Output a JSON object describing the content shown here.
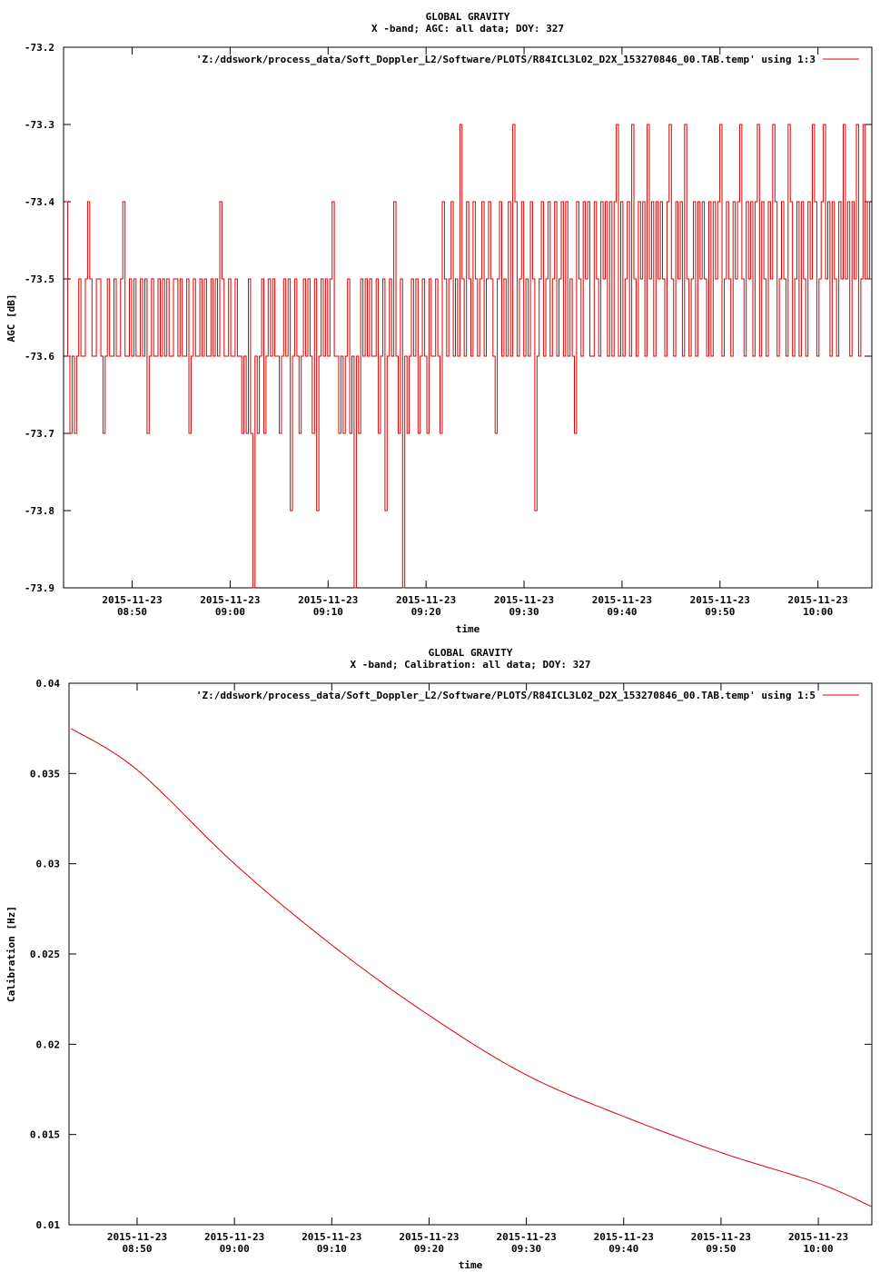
{
  "colors": {
    "series": "#dd0000",
    "axis": "#000000",
    "background": "#ffffff"
  },
  "chart_data": [
    {
      "type": "line",
      "title": "GLOBAL GRAVITY",
      "subtitle": "X -band; AGC: all data; DOY: 327",
      "xlabel": "time",
      "ylabel": "AGC [dB]",
      "ylim": [
        -73.9,
        -73.2
      ],
      "yticks": [
        -73.2,
        -73.3,
        -73.4,
        -73.5,
        -73.6,
        -73.7,
        -73.8,
        -73.9
      ],
      "ytick_labels": [
        "-73.2",
        "-73.3",
        "-73.4",
        "-73.5",
        "-73.6",
        "-73.7",
        "-73.8",
        "-73.9"
      ],
      "xlim_minutes_of_day": [
        523,
        605.5
      ],
      "xticks_minutes_of_day": [
        530,
        540,
        550,
        560,
        570,
        580,
        590,
        600
      ],
      "xtick_dates": [
        "2015-11-23",
        "2015-11-23",
        "2015-11-23",
        "2015-11-23",
        "2015-11-23",
        "2015-11-23",
        "2015-11-23",
        "2015-11-23"
      ],
      "xtick_times": [
        "08:50",
        "09:00",
        "09:10",
        "09:20",
        "09:30",
        "09:40",
        "09:50",
        "10:00"
      ],
      "grid": false,
      "legend": "top-right",
      "series": [
        {
          "name": "'Z:/ddswork/process_data/Soft_Doppler_L2/Software/PLOTS/R84ICL3L02_D2X_153270846_00.TAB.temp' using 1:3",
          "x_start": 523.2,
          "x_end": 605.5,
          "values": [
            -73.4,
            -73.6,
            -73.7,
            -73.6,
            -73.7,
            -73.6,
            -73.5,
            -73.6,
            -73.6,
            -73.5,
            -73.4,
            -73.5,
            -73.6,
            -73.6,
            -73.5,
            -73.5,
            -73.6,
            -73.7,
            -73.6,
            -73.5,
            -73.6,
            -73.6,
            -73.5,
            -73.6,
            -73.6,
            -73.5,
            -73.4,
            -73.6,
            -73.6,
            -73.5,
            -73.6,
            -73.5,
            -73.6,
            -73.6,
            -73.5,
            -73.6,
            -73.5,
            -73.7,
            -73.6,
            -73.5,
            -73.6,
            -73.6,
            -73.5,
            -73.6,
            -73.5,
            -73.6,
            -73.5,
            -73.6,
            -73.6,
            -73.5,
            -73.5,
            -73.6,
            -73.5,
            -73.6,
            -73.6,
            -73.5,
            -73.7,
            -73.6,
            -73.5,
            -73.6,
            -73.6,
            -73.5,
            -73.6,
            -73.5,
            -73.6,
            -73.6,
            -73.5,
            -73.6,
            -73.5,
            -73.6,
            -73.4,
            -73.5,
            -73.6,
            -73.6,
            -73.5,
            -73.6,
            -73.6,
            -73.5,
            -73.6,
            -73.6,
            -73.7,
            -73.6,
            -73.7,
            -73.5,
            -73.7,
            -73.9,
            -73.6,
            -73.7,
            -73.6,
            -73.5,
            -73.7,
            -73.6,
            -73.5,
            -73.6,
            -73.5,
            -73.6,
            -73.6,
            -73.7,
            -73.6,
            -73.5,
            -73.6,
            -73.5,
            -73.8,
            -73.6,
            -73.5,
            -73.6,
            -73.7,
            -73.6,
            -73.5,
            -73.6,
            -73.5,
            -73.6,
            -73.7,
            -73.5,
            -73.8,
            -73.6,
            -73.5,
            -73.6,
            -73.5,
            -73.6,
            -73.5,
            -73.4,
            -73.6,
            -73.6,
            -73.7,
            -73.6,
            -73.7,
            -73.6,
            -73.5,
            -73.7,
            -73.6,
            -73.9,
            -73.6,
            -73.7,
            -73.5,
            -73.6,
            -73.5,
            -73.6,
            -73.5,
            -73.6,
            -73.6,
            -73.5,
            -73.7,
            -73.6,
            -73.5,
            -73.8,
            -73.6,
            -73.5,
            -73.6,
            -73.4,
            -73.6,
            -73.7,
            -73.5,
            -73.9,
            -73.6,
            -73.7,
            -73.6,
            -73.5,
            -73.6,
            -73.5,
            -73.7,
            -73.6,
            -73.5,
            -73.6,
            -73.7,
            -73.5,
            -73.6,
            -73.6,
            -73.5,
            -73.6,
            -73.7,
            -73.4,
            -73.5,
            -73.6,
            -73.5,
            -73.4,
            -73.6,
            -73.5,
            -73.6,
            -73.3,
            -73.5,
            -73.6,
            -73.4,
            -73.5,
            -73.6,
            -73.4,
            -73.5,
            -73.6,
            -73.5,
            -73.4,
            -73.6,
            -73.5,
            -73.4,
            -73.5,
            -73.6,
            -73.7,
            -73.5,
            -73.4,
            -73.6,
            -73.5,
            -73.6,
            -73.4,
            -73.6,
            -73.3,
            -73.4,
            -73.6,
            -73.5,
            -73.4,
            -73.6,
            -73.5,
            -73.6,
            -73.4,
            -73.5,
            -73.8,
            -73.6,
            -73.5,
            -73.4,
            -73.6,
            -73.5,
            -73.4,
            -73.6,
            -73.5,
            -73.4,
            -73.6,
            -73.5,
            -73.4,
            -73.6,
            -73.4,
            -73.6,
            -73.5,
            -73.6,
            -73.7,
            -73.4,
            -73.5,
            -73.6,
            -73.4,
            -73.5,
            -73.4,
            -73.6,
            -73.6,
            -73.4,
            -73.5,
            -73.6,
            -73.4,
            -73.5,
            -73.4,
            -73.6,
            -73.4,
            -73.6,
            -73.4,
            -73.3,
            -73.6,
            -73.4,
            -73.6,
            -73.5,
            -73.4,
            -73.6,
            -73.3,
            -73.5,
            -73.6,
            -73.4,
            -73.5,
            -73.4,
            -73.6,
            -73.3,
            -73.5,
            -73.4,
            -73.6,
            -73.4,
            -73.5,
            -73.4,
            -73.5,
            -73.6,
            -73.4,
            -73.3,
            -73.5,
            -73.6,
            -73.4,
            -73.5,
            -73.4,
            -73.6,
            -73.3,
            -73.5,
            -73.6,
            -73.5,
            -73.4,
            -73.6,
            -73.4,
            -73.5,
            -73.4,
            -73.5,
            -73.6,
            -73.4,
            -73.6,
            -73.4,
            -73.5,
            -73.4,
            -73.3,
            -73.6,
            -73.5,
            -73.4,
            -73.5,
            -73.6,
            -73.4,
            -73.5,
            -73.4,
            -73.3,
            -73.5,
            -73.6,
            -73.4,
            -73.5,
            -73.4,
            -73.6,
            -73.4,
            -73.3,
            -73.6,
            -73.4,
            -73.5,
            -73.6,
            -73.4,
            -73.5,
            -73.3,
            -73.4,
            -73.6,
            -73.5,
            -73.4,
            -73.5,
            -73.6,
            -73.3,
            -73.4,
            -73.6,
            -73.5,
            -73.4,
            -73.6,
            -73.4,
            -73.5,
            -73.6,
            -73.4,
            -73.5,
            -73.3,
            -73.4,
            -73.6,
            -73.5,
            -73.4,
            -73.3,
            -73.5,
            -73.4,
            -73.6,
            -73.4,
            -73.5,
            -73.6,
            -73.4,
            -73.5,
            -73.3,
            -73.5,
            -73.4,
            -73.6,
            -73.4,
            -73.5,
            -73.3,
            -73.6,
            -73.5,
            -73.3,
            -73.5,
            -73.4,
            -73.5
          ]
        }
      ]
    },
    {
      "type": "line",
      "title": "GLOBAL GRAVITY",
      "subtitle": "X -band; Calibration: all data; DOY: 327",
      "xlabel": "time",
      "ylabel": "Calibration [Hz]",
      "ylim": [
        0.01,
        0.04
      ],
      "yticks": [
        0.04,
        0.035,
        0.03,
        0.025,
        0.02,
        0.015,
        0.01
      ],
      "ytick_labels": [
        "0.04",
        "0.035",
        "0.03",
        "0.025",
        "0.02",
        "0.015",
        "0.01"
      ],
      "xlim_minutes_of_day": [
        523,
        605.5
      ],
      "xticks_minutes_of_day": [
        530,
        540,
        550,
        560,
        570,
        580,
        590,
        600
      ],
      "xtick_dates": [
        "2015-11-23",
        "2015-11-23",
        "2015-11-23",
        "2015-11-23",
        "2015-11-23",
        "2015-11-23",
        "2015-11-23",
        "2015-11-23"
      ],
      "xtick_times": [
        "08:50",
        "09:00",
        "09:10",
        "09:20",
        "09:30",
        "09:40",
        "09:50",
        "10:00"
      ],
      "grid": false,
      "legend": "top-right",
      "series": [
        {
          "name": "'Z:/ddswork/process_data/Soft_Doppler_L2/Software/PLOTS/R84ICL3L02_D2X_153270846_00.TAB.temp' using 1:5",
          "x": [
            523.2,
            530,
            540,
            550,
            560,
            570,
            580,
            590,
            600,
            605.5
          ],
          "values": [
            0.0375,
            0.0352,
            0.03,
            0.0255,
            0.0216,
            0.0183,
            0.016,
            0.014,
            0.0123,
            0.011
          ]
        }
      ]
    }
  ]
}
